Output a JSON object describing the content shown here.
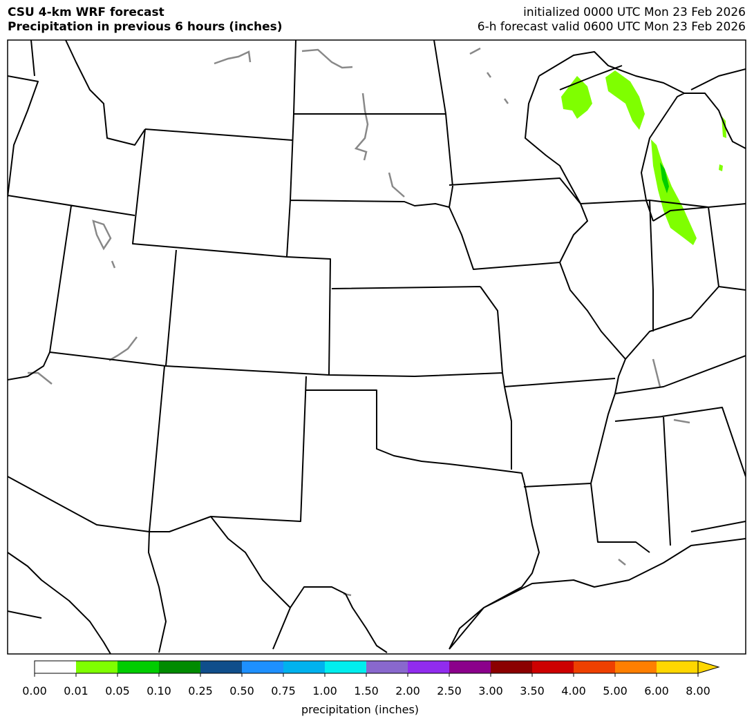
{
  "header": {
    "title": "CSU 4-km WRF forecast",
    "subtitle": "Precipitation in previous 6 hours (inches)",
    "init": "initialized 0000 UTC Mon 23 Feb 2026",
    "valid": "6-h forecast valid 0600 UTC Mon 23 Feb 2026"
  },
  "colorbar": {
    "label": "precipitation (inches)",
    "extend": "max",
    "ticks": [
      {
        "value": 0,
        "label": "0.00"
      },
      {
        "value": 0.01,
        "label": "0.01"
      },
      {
        "value": 0.05,
        "label": "0.05"
      },
      {
        "value": 0.1,
        "label": "0.10"
      },
      {
        "value": 0.25,
        "label": "0.25"
      },
      {
        "value": 0.5,
        "label": "0.50"
      },
      {
        "value": 0.75,
        "label": "0.75"
      },
      {
        "value": 1,
        "label": "1.00"
      },
      {
        "value": 1.5,
        "label": "1.50"
      },
      {
        "value": 2,
        "label": "2.00"
      },
      {
        "value": 2.5,
        "label": "2.50"
      },
      {
        "value": 3,
        "label": "3.00"
      },
      {
        "value": 3.5,
        "label": "3.50"
      },
      {
        "value": 4,
        "label": "4.00"
      },
      {
        "value": 5,
        "label": "5.00"
      },
      {
        "value": 6,
        "label": "6.00"
      },
      {
        "value": 8,
        "label": "8.00"
      }
    ],
    "colors": [
      "#ffffff",
      "#7fff00",
      "#00cd00",
      "#008b00",
      "#104e8b",
      "#1e90ff",
      "#00b2ee",
      "#00eeee",
      "#8968cd",
      "#912cee",
      "#8b008b",
      "#8b0000",
      "#cd0000",
      "#ee4000",
      "#ff7f00",
      "#ffd700"
    ],
    "extend_color": "#ffd700"
  }
}
